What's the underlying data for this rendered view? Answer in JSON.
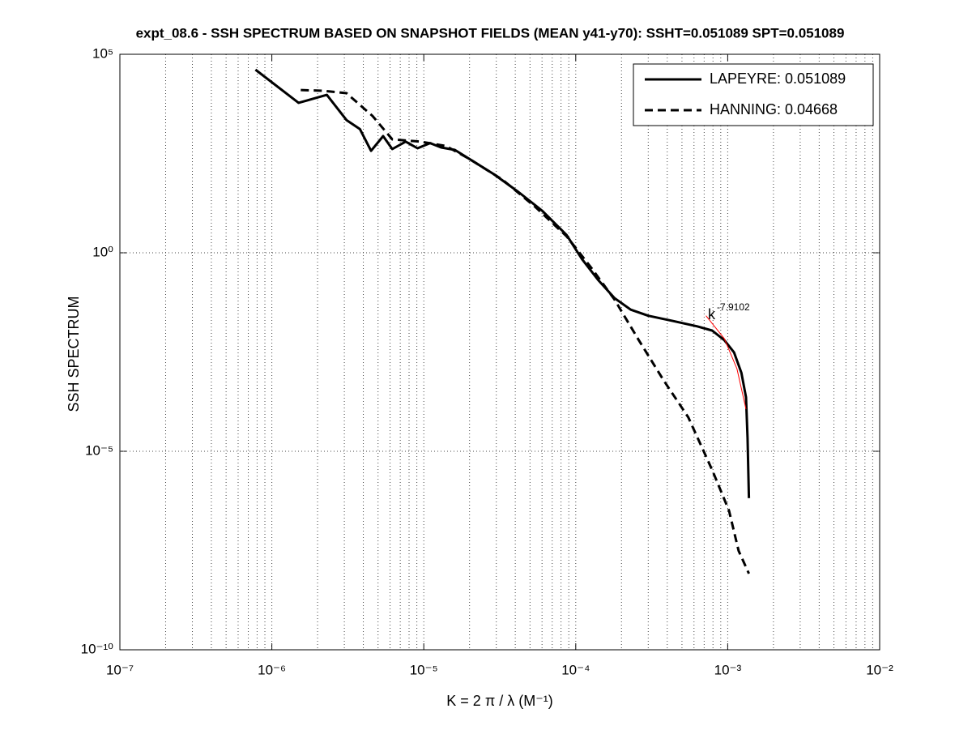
{
  "chart_data": {
    "type": "line",
    "title": "expt_08.6 - SSH SPECTRUM BASED ON SNAPSHOT FIELDS (MEAN y41-y70): SSHT=0.051089 SPT=0.051089",
    "xlabel": "K = 2 π / λ  (M⁻¹)",
    "ylabel": "SSH SPECTRUM",
    "xscale": "log",
    "yscale": "log",
    "grid": true,
    "legend": "northeast",
    "xlim": [
      1e-07,
      0.01
    ],
    "ylim": [
      1e-10,
      100000.0
    ],
    "xticks": [
      {
        "value": 1e-07,
        "label": "10⁻⁷"
      },
      {
        "value": 1e-06,
        "label": "10⁻⁶"
      },
      {
        "value": 1e-05,
        "label": "10⁻⁵"
      },
      {
        "value": 0.0001,
        "label": "10⁻⁴"
      },
      {
        "value": 0.001,
        "label": "10⁻³"
      },
      {
        "value": 0.01,
        "label": "10⁻²"
      }
    ],
    "yticks": [
      {
        "value": 1e-10,
        "label": "10⁻¹⁰"
      },
      {
        "value": 1e-05,
        "label": "10⁻⁵"
      },
      {
        "value": 1,
        "label": "10⁰"
      },
      {
        "value": 100000.0,
        "label": "10⁵"
      }
    ],
    "annotation": {
      "text": "k",
      "exponent": "-7.9102"
    },
    "series": [
      {
        "name": "LAPEYRE: 0.051089",
        "color": "#000000",
        "style": "solid",
        "x": [
          7.8e-07,
          1.5e-06,
          2.3e-06,
          3.1e-06,
          3.8e-06,
          4.5e-06,
          5.4e-06,
          6.2e-06,
          7.6e-06,
          9.1e-06,
          1.1e-05,
          1.3e-05,
          1.6e-05,
          2e-05,
          2.9e-05,
          4.2e-05,
          6e-05,
          8.7e-05,
          0.00011,
          0.00014,
          0.00018,
          0.00023,
          0.0003,
          0.00044,
          0.00063,
          0.00079,
          0.00095,
          0.0011,
          0.00123,
          0.00132,
          0.00135,
          0.00138
        ],
        "values": [
          41000.0,
          6000.0,
          9500.0,
          2200.0,
          1300.0,
          370,
          870,
          410,
          630,
          430,
          580,
          450,
          390,
          230,
          95,
          34,
          11.5,
          2.8,
          0.69,
          0.21,
          0.072,
          0.037,
          0.026,
          0.019,
          0.014,
          0.011,
          0.0063,
          0.0031,
          0.00095,
          0.00023,
          2.2e-05,
          6.6e-07
        ]
      },
      {
        "name": "HANNING: 0.04668",
        "color": "#000000",
        "style": "dashed",
        "x": [
          1.55e-06,
          2.2e-06,
          3.1e-06,
          4.6e-06,
          6.2e-06,
          9.5e-06,
          1.4e-05,
          2e-05,
          3.3e-05,
          5.4e-05,
          8.7e-05,
          0.000126,
          0.00018,
          0.00026,
          0.00038,
          0.00055,
          0.00079,
          0.00102,
          0.00118,
          0.00138
        ],
        "values": [
          12600.0,
          12000.0,
          10500.0,
          2800.0,
          720,
          630,
          490,
          230,
          69,
          14.5,
          2.6,
          0.43,
          0.066,
          0.0063,
          0.0006,
          7.2e-05,
          3.4e-06,
          3.2e-07,
          3.1e-08,
          8.3e-09
        ]
      },
      {
        "color": "#ff0000",
        "style": "thin",
        "x": [
          0.00072,
          0.00095,
          0.00115,
          0.00132
        ],
        "values": [
          0.026,
          0.0069,
          0.0012,
          0.000115
        ]
      }
    ]
  }
}
